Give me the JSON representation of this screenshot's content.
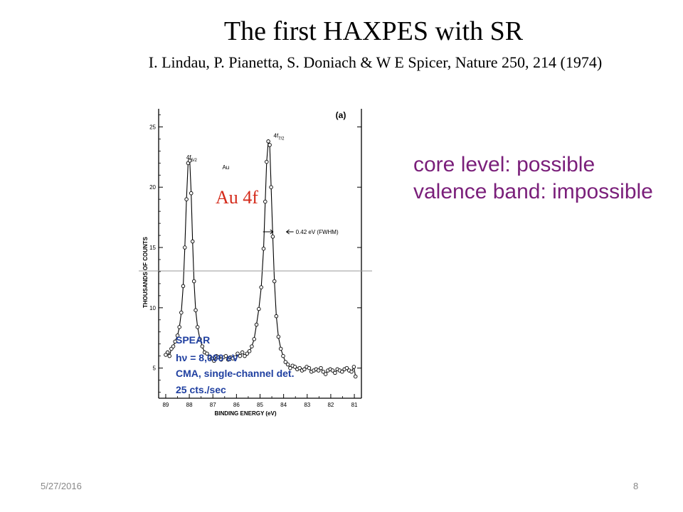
{
  "slide": {
    "title": "The first HAXPES with SR",
    "citation": "I. Lindau, P. Pianetta, S. Doniach & W E Spicer, Nature 250, 214 (1974)",
    "notes": [
      "core level: possible",
      "valence band: impossible"
    ],
    "note_color": "#7a1f7a",
    "overlay_label": "Au 4f",
    "overlay_color": "#d42a1a",
    "footer_date": "5/27/2016",
    "page_number": "8"
  },
  "chart_data": {
    "type": "scatter",
    "panel_label": "(a)",
    "xlabel": "BINDING ENERGY (eV)",
    "ylabel": "THOUSANDS OF COUNTS",
    "x_ticks": [
      89,
      88,
      87,
      86,
      85,
      84,
      83,
      82,
      81
    ],
    "y_ticks": [
      5,
      10,
      15,
      20,
      25
    ],
    "xlim": [
      89.3,
      80.7
    ],
    "ylim": [
      2.5,
      26.5
    ],
    "x_reversed": true,
    "peak_labels": [
      {
        "text": "4f5/2",
        "main": "4f",
        "sub": "5/2",
        "x": 87.9,
        "y": 22.3
      },
      {
        "text": "4f7/2",
        "main": "4f",
        "sub": "7/2",
        "x": 84.2,
        "y": 24.1
      }
    ],
    "element_label": {
      "text": "Au",
      "x": 86.6,
      "y": 21.5
    },
    "fwhm_annotation": {
      "text": "0.42 eV (FWHM)",
      "x": 84.0,
      "y": 16.3
    },
    "legend_color": "#1f3fa0",
    "legend_lines": [
      "SPEAR",
      "hν = 8,000 eV",
      "CMA, single-channel det.",
      "25 cts./sec"
    ],
    "series": [
      {
        "points": [
          [
            89.0,
            6.1
          ],
          [
            88.92,
            6.3
          ],
          [
            88.84,
            6.0
          ],
          [
            88.76,
            6.6
          ],
          [
            88.68,
            6.8
          ],
          [
            88.6,
            7.2
          ],
          [
            88.5,
            7.7
          ],
          [
            88.42,
            8.4
          ],
          [
            88.34,
            9.6
          ],
          [
            88.26,
            11.8
          ],
          [
            88.19,
            15.0
          ],
          [
            88.12,
            19.0
          ],
          [
            88.05,
            22.0
          ],
          [
            87.98,
            22.2
          ],
          [
            87.92,
            19.5
          ],
          [
            87.86,
            15.5
          ],
          [
            87.8,
            12.2
          ],
          [
            87.73,
            9.8
          ],
          [
            87.65,
            8.4
          ],
          [
            87.55,
            7.4
          ],
          [
            87.45,
            6.8
          ],
          [
            87.35,
            6.3
          ],
          [
            87.25,
            6.2
          ],
          [
            87.15,
            5.9
          ],
          [
            87.05,
            5.8
          ],
          [
            86.95,
            5.6
          ],
          [
            86.85,
            6.0
          ],
          [
            86.75,
            5.9
          ],
          [
            86.65,
            5.7
          ],
          [
            86.55,
            5.9
          ],
          [
            86.45,
            6.0
          ],
          [
            86.35,
            5.7
          ],
          [
            86.25,
            5.9
          ],
          [
            86.15,
            5.8
          ],
          [
            86.05,
            5.9
          ],
          [
            85.95,
            6.2
          ],
          [
            85.85,
            6.0
          ],
          [
            85.75,
            6.3
          ],
          [
            85.65,
            6.0
          ],
          [
            85.55,
            6.2
          ],
          [
            85.45,
            6.4
          ],
          [
            85.35,
            6.8
          ],
          [
            85.25,
            7.4
          ],
          [
            85.15,
            8.6
          ],
          [
            85.05,
            9.9
          ],
          [
            84.95,
            11.7
          ],
          [
            84.85,
            14.9
          ],
          [
            84.78,
            18.8
          ],
          [
            84.72,
            22.1
          ],
          [
            84.65,
            23.8
          ],
          [
            84.59,
            23.5
          ],
          [
            84.53,
            20.0
          ],
          [
            84.46,
            15.9
          ],
          [
            84.39,
            12.2
          ],
          [
            84.31,
            9.3
          ],
          [
            84.22,
            7.6
          ],
          [
            84.12,
            6.6
          ],
          [
            84.02,
            6.0
          ],
          [
            83.92,
            5.5
          ],
          [
            83.82,
            5.3
          ],
          [
            83.72,
            5.0
          ],
          [
            83.62,
            5.2
          ],
          [
            83.52,
            5.1
          ],
          [
            83.42,
            4.9
          ],
          [
            83.32,
            5.0
          ],
          [
            83.22,
            4.8
          ],
          [
            83.12,
            4.9
          ],
          [
            83.02,
            5.1
          ],
          [
            82.92,
            5.0
          ],
          [
            82.82,
            4.7
          ],
          [
            82.72,
            4.8
          ],
          [
            82.62,
            4.9
          ],
          [
            82.52,
            4.8
          ],
          [
            82.42,
            5.0
          ],
          [
            82.32,
            4.7
          ],
          [
            82.22,
            4.5
          ],
          [
            82.12,
            4.8
          ],
          [
            82.02,
            4.9
          ],
          [
            81.92,
            4.8
          ],
          [
            81.82,
            4.6
          ],
          [
            81.72,
            4.9
          ],
          [
            81.62,
            4.8
          ],
          [
            81.52,
            4.7
          ],
          [
            81.42,
            4.9
          ],
          [
            81.32,
            5.0
          ],
          [
            81.22,
            4.8
          ],
          [
            81.12,
            4.7
          ],
          [
            81.02,
            5.1
          ],
          [
            80.95,
            4.3
          ]
        ]
      }
    ],
    "grid": false
  }
}
